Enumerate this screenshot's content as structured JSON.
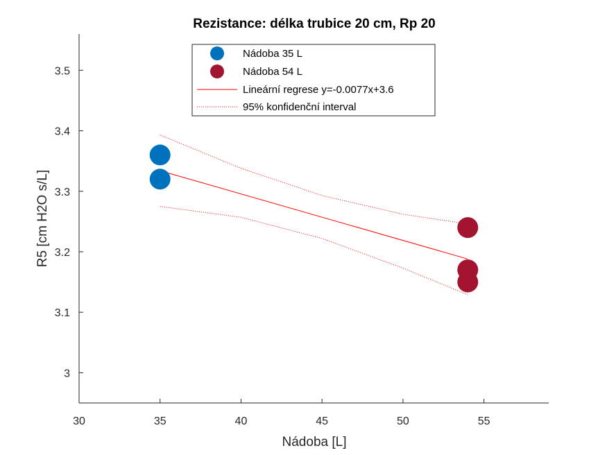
{
  "chart_data": {
    "type": "scatter",
    "title": "Rezistance: délka trubice 20 cm, Rp 20",
    "xlabel": "Nádoba [L]",
    "ylabel": "R5 [cm H2O s/L]",
    "xlim": [
      30,
      59
    ],
    "ylim": [
      2.95,
      3.56
    ],
    "xticks": [
      30,
      35,
      40,
      45,
      50,
      55
    ],
    "yticks": [
      3,
      3.1,
      3.2,
      3.3,
      3.4,
      3.5
    ],
    "xtick_labels": [
      "30",
      "35",
      "40",
      "45",
      "50",
      "55"
    ],
    "ytick_labels": [
      "3",
      "3.1",
      "3.2",
      "3.3",
      "3.4",
      "3.5"
    ],
    "grid": false,
    "legend_position": "top-center",
    "series": [
      {
        "name": "Nádoba 35 L",
        "color": "#0072BD",
        "points": [
          {
            "x": 35,
            "y": 3.36
          },
          {
            "x": 35,
            "y": 3.32
          }
        ]
      },
      {
        "name": "Nádoba 54 L",
        "color": "#A2142F",
        "points": [
          {
            "x": 54,
            "y": 3.24
          },
          {
            "x": 54,
            "y": 3.17
          },
          {
            "x": 54,
            "y": 3.15
          }
        ]
      }
    ],
    "regression": {
      "name": "Lineární regrese y=-0.0077x+3.6",
      "color": "#FF0000",
      "x": [
        35,
        54
      ],
      "y": [
        3.334,
        3.188
      ]
    },
    "confidence_interval": {
      "name": "95% konfidenční interval",
      "color": "#FF0000",
      "x": [
        35,
        40,
        45,
        50,
        54
      ],
      "upper": [
        3.393,
        3.338,
        3.293,
        3.262,
        3.246
      ],
      "lower": [
        3.275,
        3.257,
        3.222,
        3.173,
        3.129
      ]
    }
  }
}
